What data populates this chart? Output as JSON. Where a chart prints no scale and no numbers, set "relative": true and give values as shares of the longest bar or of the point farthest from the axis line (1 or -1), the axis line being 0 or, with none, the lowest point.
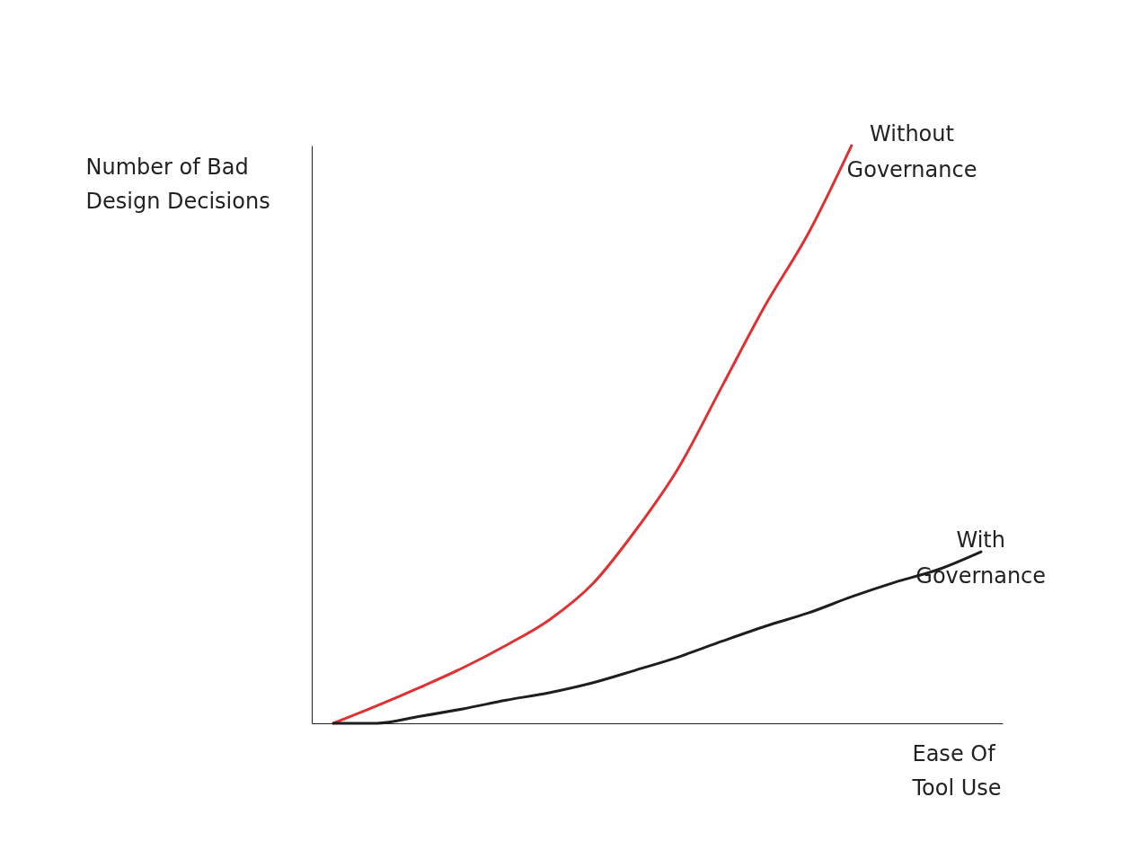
{
  "chart_data": {
    "type": "line",
    "relative": true,
    "xlabel": "Ease Of Tool Use",
    "ylabel": "Number of Bad Design Decisions",
    "categories": [
      null,
      null,
      null,
      null,
      null,
      null,
      null,
      null,
      null,
      null,
      null,
      null,
      null,
      null,
      null,
      null
    ],
    "legend": false,
    "grid": false,
    "tick_labels": false,
    "series": [
      {
        "name": "Without Governance",
        "color": "#e03030",
        "values": [
          0,
          0.03,
          0.062,
          0.096,
          0.135,
          0.179,
          0.241,
          0.334,
          0.443,
          0.583,
          0.723,
          0.848,
          1.0,
          null,
          null,
          null
        ]
      },
      {
        "name": "With Governance",
        "color": "#1e1e1e",
        "values": [
          0,
          0,
          0.012,
          0.025,
          0.04,
          0.053,
          0.07,
          0.092,
          0.115,
          0.142,
          0.168,
          0.191,
          0.219,
          0.244,
          0.266,
          0.297
        ]
      }
    ]
  }
}
